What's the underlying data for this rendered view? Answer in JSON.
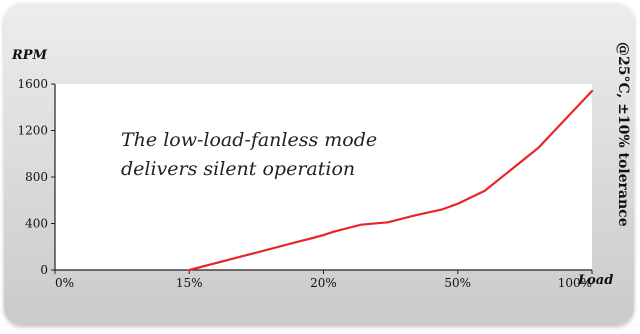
{
  "chart_data": {
    "type": "line",
    "title": "",
    "ylabel": "RPM",
    "xlabel": "Load",
    "side_note": "@25°C, ±10% tolerance",
    "annotation": [
      "The low-load-fanless mode",
      "delivers silent operation"
    ],
    "x_ticks": [
      "0%",
      "15%",
      "20%",
      "50%",
      "100%"
    ],
    "y_ticks": [
      "0",
      "400",
      "800",
      "1200",
      "1600"
    ],
    "ylim": [
      0,
      1600
    ],
    "grid": false,
    "legend": "none",
    "line_color": "#e8262a",
    "series": [
      {
        "x": [
          0.25,
          0.35,
          0.45,
          0.48,
          0.5,
          0.52,
          0.57,
          0.62,
          0.67,
          0.72,
          0.75,
          0.8,
          0.9,
          1.0
        ],
        "y": [
          0,
          120,
          240,
          275,
          300,
          330,
          390,
          410,
          470,
          520,
          570,
          680,
          1050,
          1540
        ]
      }
    ]
  },
  "colors": {
    "card_top": "#ededed",
    "card_bottom": "#cacaca",
    "plot_bg": "#ffffff",
    "axis": "#222222"
  }
}
